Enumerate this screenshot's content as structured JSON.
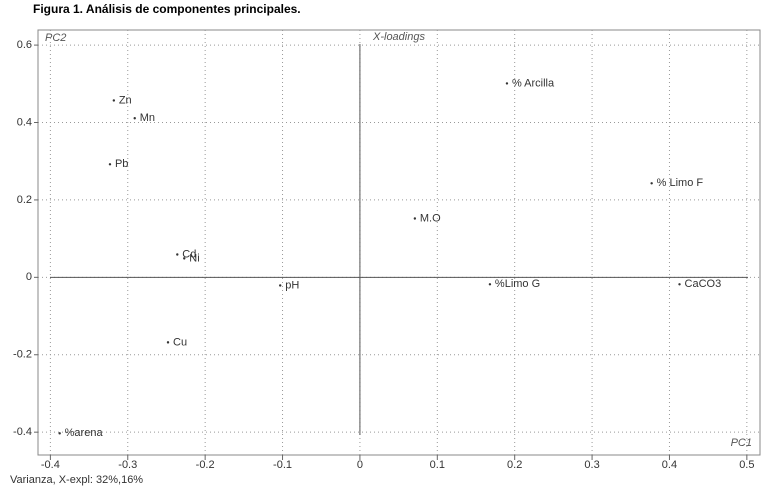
{
  "chart_data": {
    "type": "scatter",
    "title": "Figura 1. Análisis de componentes principales.",
    "subtitle": "X-loadings",
    "xlabel": "PC1",
    "ylabel": "PC2",
    "footer": "Varianza, X-expl: 32%,16%",
    "labels": [
      "Zn",
      "Mn",
      "Pb",
      "Cd",
      "Ni",
      "Cu",
      "pH",
      "%arena",
      "M.O",
      "% Arcilla",
      "% Limo F",
      "%Limo G",
      "CaCO3"
    ],
    "x": [
      -0.318,
      -0.291,
      -0.323,
      -0.236,
      -0.227,
      -0.248,
      -0.103,
      -0.388,
      0.071,
      0.19,
      0.377,
      0.168,
      0.413
    ],
    "values": [
      0.457,
      0.411,
      0.292,
      0.059,
      0.049,
      -0.168,
      -0.021,
      -0.403,
      0.152,
      0.501,
      0.243,
      -0.018,
      -0.018
    ],
    "color": "#333333",
    "xlim": [
      -0.416,
      0.517
    ],
    "ylim": [
      -0.459,
      0.639
    ],
    "xticks": [
      -0.4,
      -0.3,
      -0.2,
      -0.1,
      0,
      0.1,
      0.2,
      0.3,
      0.4,
      0.5
    ],
    "yticks": [
      -0.4,
      -0.2,
      0,
      0.2,
      0.4,
      0.6
    ],
    "grid": true
  }
}
